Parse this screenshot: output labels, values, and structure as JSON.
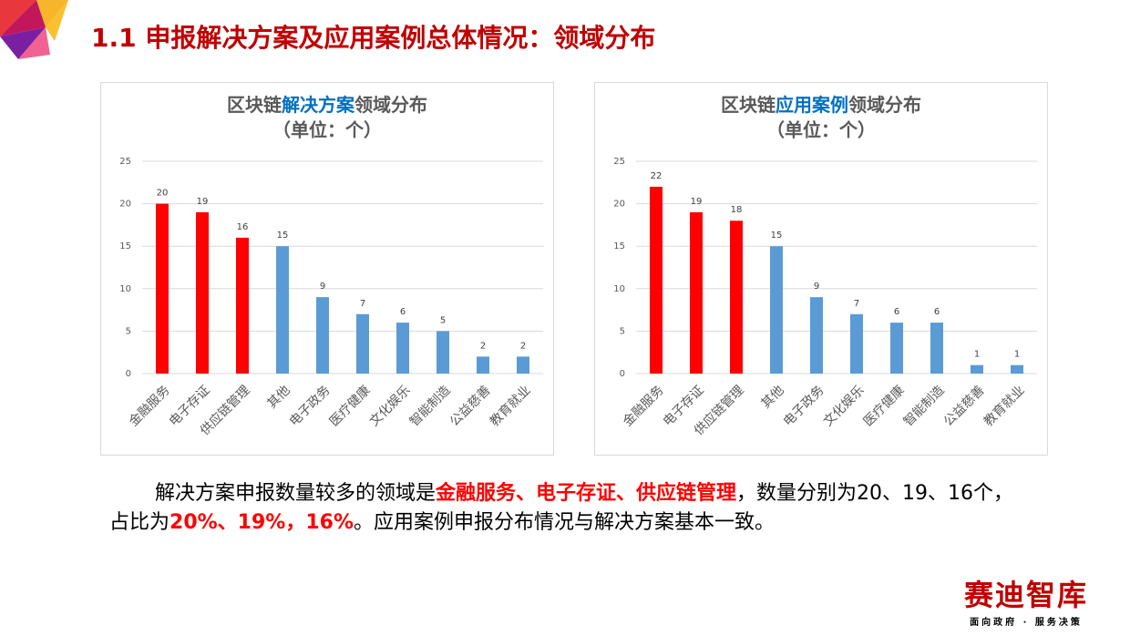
{
  "title": "1.1 申报解决方案及应用案例总体情况：领域分布",
  "chart_data": [
    {
      "type": "bar",
      "title": [
        "区块链",
        "解决方案",
        "领域分布"
      ],
      "subtitle": "（单位：个）",
      "categories": [
        "金融服务",
        "电子存证",
        "供应链管理",
        "其他",
        "电子政务",
        "医疗健康",
        "文化娱乐",
        "智能制造",
        "公益慈善",
        "教育就业"
      ],
      "values": [
        20,
        19,
        16,
        15,
        9,
        7,
        6,
        5,
        2,
        2
      ],
      "colors": [
        "#ff0000",
        "#ff0000",
        "#ff0000",
        "#5b9bd5",
        "#5b9bd5",
        "#5b9bd5",
        "#5b9bd5",
        "#5b9bd5",
        "#5b9bd5",
        "#5b9bd5"
      ],
      "ylim": [
        0,
        25
      ],
      "yticks": [
        0,
        5,
        10,
        15,
        20,
        25
      ],
      "grid": true
    },
    {
      "type": "bar",
      "title": [
        "区块链",
        "应用案例",
        "领域分布"
      ],
      "subtitle": "（单位：个）",
      "categories": [
        "金融服务",
        "电子存证",
        "供应链管理",
        "其他",
        "电子政务",
        "文化娱乐",
        "医疗健康",
        "智能制造",
        "公益慈善",
        "教育就业"
      ],
      "values": [
        22,
        19,
        18,
        15,
        9,
        7,
        6,
        6,
        1,
        1
      ],
      "colors": [
        "#ff0000",
        "#ff0000",
        "#ff0000",
        "#5b9bd5",
        "#5b9bd5",
        "#5b9bd5",
        "#5b9bd5",
        "#5b9bd5",
        "#5b9bd5",
        "#5b9bd5"
      ],
      "ylim": [
        0,
        25
      ],
      "yticks": [
        0,
        5,
        10,
        15,
        20,
        25
      ],
      "grid": true
    }
  ],
  "body": [
    "解决方案申报数量较多的领域是",
    "金融服务、电子存证、供应链管理",
    "，数量分别为20、19、16个，占比为",
    "20%、19%，16%",
    "。应用案例申报分布情况与解决方案基本一致。"
  ],
  "logo": {
    "name": "赛迪智库",
    "slogan": "面向政府 · 服务决策"
  }
}
